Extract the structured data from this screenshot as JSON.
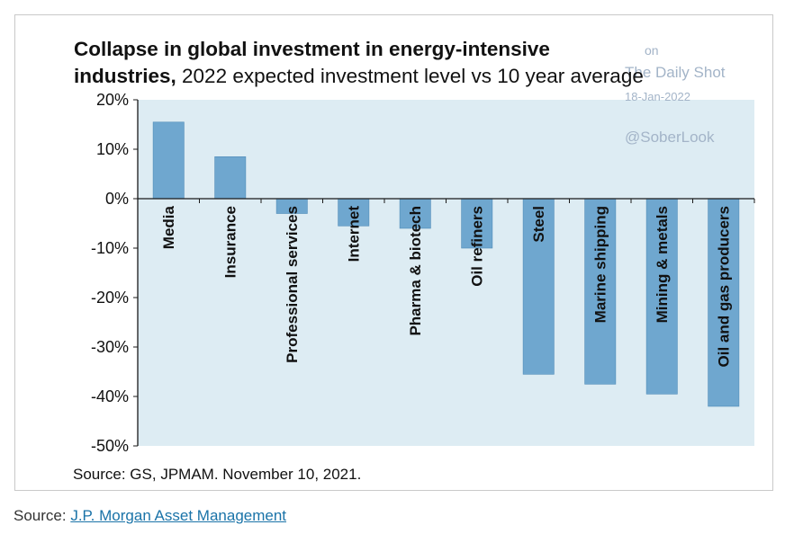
{
  "chart_data": {
    "type": "bar",
    "title": "Collapse in global investment in energy-intensive industries,",
    "subtitle": "2022 expected investment level vs 10 year average",
    "categories": [
      "Media",
      "Insurance",
      "Professional services",
      "Internet",
      "Pharma & biotech",
      "Oil refiners",
      "Steel",
      "Marine shipping",
      "Mining & metals",
      "Oil and gas producers"
    ],
    "values": [
      15.5,
      8.5,
      -3.0,
      -5.5,
      -6.0,
      -10.0,
      -35.5,
      -37.5,
      -39.5,
      -42.0
    ],
    "ylim": [
      -50,
      20
    ],
    "yticks": [
      20,
      10,
      0,
      -10,
      -20,
      -30,
      -40,
      -50
    ],
    "y_format": "percent",
    "xlabel": "",
    "ylabel": "",
    "grid": false,
    "legend": "none",
    "colors": {
      "bar": "#6fa7cf",
      "bar_edge": "#4f8cb8",
      "plot_bg": "#ddecf3",
      "axis": "#1a1a1a"
    }
  },
  "title_parts": {
    "line1": "Collapse in global investment in energy-intensive",
    "line2_bold": "industries,",
    "line2_rest": " 2022 expected investment level vs 10 year average"
  },
  "watermark": {
    "fragment": "on",
    "name": "The Daily Shot",
    "date": "18-Jan-2022",
    "handle": "@SoberLook"
  },
  "chart_source": "Source: GS, JPMAM. November 10, 2021.",
  "footer": {
    "prefix": "Source: ",
    "link_text": "J.P. Morgan Asset Management"
  }
}
